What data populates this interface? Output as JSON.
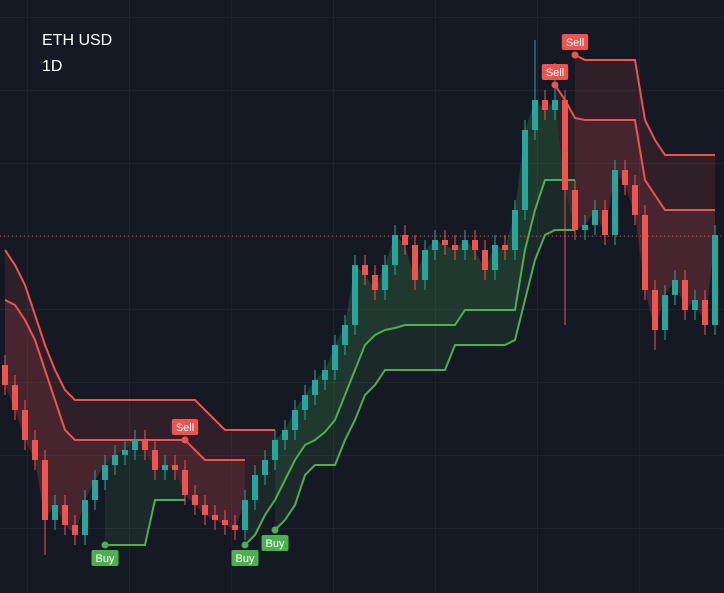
{
  "chart_data": {
    "type": "candlestick",
    "title": "ETH USD",
    "subtitle": "1D",
    "ylim": [
      0,
      593
    ],
    "up_color": "#26a69a",
    "down_color": "#ef5350",
    "open": [
      228,
      208,
      183,
      153,
      133,
      73,
      88,
      68,
      58,
      93,
      113,
      128,
      138,
      143,
      153,
      143,
      123,
      128,
      123,
      98,
      88,
      78,
      73,
      68,
      63,
      93,
      118,
      133,
      153,
      163,
      183,
      198,
      213,
      223,
      248,
      268,
      328,
      318,
      303,
      328,
      358,
      348,
      313,
      343,
      353,
      348,
      343,
      353,
      343,
      323,
      348,
      343,
      383,
      463,
      493,
      483,
      493,
      403,
      363,
      368,
      383,
      358,
      423,
      408,
      378,
      303,
      263,
      298,
      313,
      283,
      293,
      268
    ],
    "high": [
      238,
      218,
      193,
      163,
      143,
      98,
      98,
      78,
      103,
      123,
      138,
      148,
      153,
      163,
      163,
      153,
      138,
      138,
      133,
      108,
      98,
      88,
      83,
      78,
      103,
      128,
      143,
      163,
      173,
      193,
      208,
      223,
      233,
      258,
      278,
      338,
      338,
      328,
      338,
      368,
      368,
      358,
      353,
      363,
      363,
      358,
      363,
      363,
      353,
      358,
      358,
      393,
      473,
      553,
      503,
      530,
      503,
      413,
      378,
      393,
      393,
      433,
      433,
      418,
      388,
      313,
      308,
      323,
      323,
      303,
      303,
      368
    ],
    "low": [
      198,
      173,
      143,
      123,
      38,
      63,
      58,
      48,
      48,
      83,
      103,
      118,
      128,
      133,
      133,
      113,
      113,
      113,
      88,
      78,
      68,
      63,
      58,
      53,
      53,
      83,
      108,
      123,
      143,
      153,
      173,
      188,
      203,
      213,
      238,
      258,
      308,
      293,
      293,
      318,
      338,
      303,
      303,
      333,
      338,
      333,
      333,
      333,
      313,
      313,
      333,
      333,
      373,
      453,
      473,
      473,
      268,
      353,
      353,
      358,
      348,
      348,
      398,
      368,
      293,
      243,
      253,
      288,
      273,
      273,
      258,
      258
    ],
    "close": [
      208,
      183,
      153,
      133,
      73,
      88,
      68,
      58,
      93,
      113,
      128,
      138,
      143,
      153,
      143,
      123,
      128,
      123,
      98,
      88,
      78,
      73,
      68,
      63,
      93,
      118,
      133,
      153,
      163,
      183,
      198,
      213,
      223,
      248,
      268,
      328,
      318,
      303,
      328,
      358,
      348,
      313,
      343,
      353,
      348,
      343,
      353,
      343,
      323,
      348,
      343,
      383,
      463,
      493,
      483,
      493,
      403,
      363,
      368,
      383,
      358,
      423,
      408,
      378,
      303,
      263,
      298,
      313,
      283,
      293,
      268,
      358
    ],
    "bands": [
      {
        "color": "#ef5350",
        "values": [
          293,
          288,
          273,
          253,
          223,
          193,
          163,
          153,
          153,
          153,
          153,
          153,
          153,
          153,
          153,
          153,
          153,
          153,
          153,
          143,
          133,
          133,
          133,
          133,
          133,
          null,
          null,
          null,
          null,
          null,
          null,
          null,
          null,
          null,
          null,
          null,
          null,
          null,
          null,
          null,
          null,
          null,
          null,
          null,
          null,
          null,
          null,
          null,
          null,
          null,
          null,
          null,
          null,
          null,
          null,
          508,
          493,
          475,
          473,
          473,
          473,
          473,
          473,
          473,
          413,
          398,
          383,
          383,
          383,
          383,
          383,
          383
        ]
      },
      {
        "color": "#ef5350",
        "values": [
          343,
          328,
          308,
          278,
          248,
          223,
          203,
          193,
          193,
          193,
          193,
          193,
          193,
          193,
          193,
          193,
          193,
          193,
          193,
          193,
          183,
          173,
          163,
          163,
          163,
          163,
          163,
          163,
          null,
          null,
          null,
          null,
          null,
          null,
          null,
          null,
          null,
          null,
          null,
          null,
          null,
          null,
          null,
          null,
          null,
          null,
          null,
          null,
          null,
          null,
          null,
          null,
          null,
          null,
          null,
          null,
          null,
          538,
          533,
          533,
          533,
          533,
          533,
          533,
          473,
          453,
          438,
          438,
          438,
          438,
          438,
          438
        ]
      },
      {
        "color": "#4caf50",
        "values": [
          null,
          null,
          null,
          null,
          null,
          null,
          null,
          null,
          null,
          null,
          48,
          48,
          48,
          48,
          48,
          93,
          93,
          93,
          93,
          null,
          null,
          null,
          null,
          null,
          48,
          58,
          78,
          93,
          113,
          133,
          148,
          153,
          161,
          173,
          198,
          223,
          248,
          258,
          263,
          265,
          268,
          268,
          268,
          268,
          268,
          268,
          283,
          283,
          283,
          283,
          283,
          283,
          343,
          383,
          413,
          413,
          413,
          413,
          null,
          null,
          null,
          null,
          null,
          null,
          null,
          null,
          null,
          null,
          null,
          null,
          null,
          null
        ]
      },
      {
        "color": "#4caf50",
        "values": [
          null,
          null,
          null,
          null,
          null,
          null,
          null,
          null,
          null,
          null,
          null,
          null,
          null,
          null,
          null,
          null,
          null,
          null,
          null,
          null,
          null,
          null,
          null,
          null,
          null,
          null,
          null,
          63,
          73,
          88,
          118,
          128,
          128,
          128,
          153,
          173,
          198,
          208,
          223,
          223,
          223,
          223,
          223,
          223,
          223,
          248,
          248,
          248,
          248,
          248,
          248,
          253,
          293,
          333,
          358,
          363,
          363,
          363,
          null,
          null,
          null,
          null,
          null,
          null,
          null,
          null,
          null,
          null,
          null,
          null,
          null,
          null
        ]
      }
    ],
    "signals": [
      {
        "label": "Buy",
        "index": 10,
        "value": 48,
        "color": "#4caf50"
      },
      {
        "label": "Sell",
        "index": 18,
        "value": 153,
        "color": "#ef5350"
      },
      {
        "label": "Buy",
        "index": 24,
        "value": 48,
        "color": "#4caf50"
      },
      {
        "label": "Buy",
        "index": 27,
        "value": 63,
        "color": "#4caf50"
      },
      {
        "label": "Sell",
        "index": 55,
        "value": 508,
        "color": "#ef5350"
      },
      {
        "label": "Sell",
        "index": 57,
        "value": 538,
        "color": "#ef5350"
      }
    ],
    "price_line": 357,
    "price_line_color": "#ef5350"
  }
}
